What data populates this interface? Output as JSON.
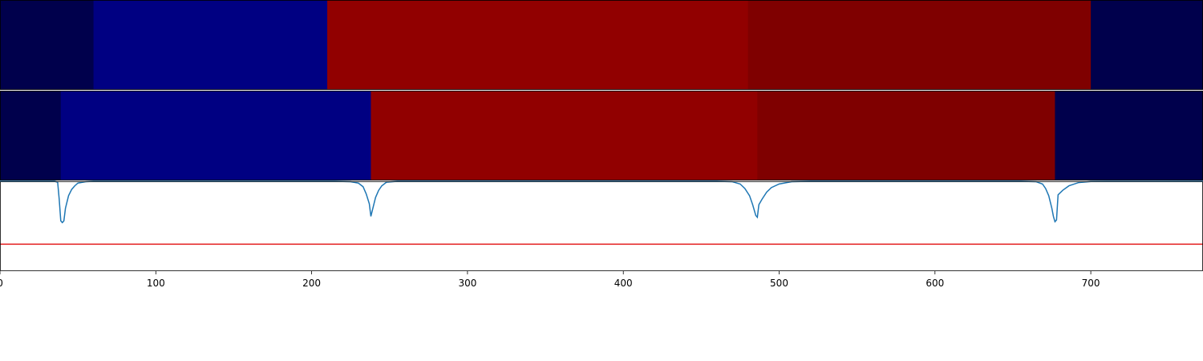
{
  "chart_data": {
    "type": "segmentation",
    "x_range": [
      0,
      772
    ],
    "xticks": [
      0,
      100,
      200,
      300,
      400,
      500,
      600,
      700
    ],
    "xtick_labels": [
      "0",
      "100",
      "200",
      "300",
      "400",
      "500",
      "600",
      "700"
    ],
    "color_scale": {
      "low": "#00004c",
      "mid_low": "#000082",
      "mid_high": "#910000",
      "high": "#7f0000"
    },
    "rows": [
      {
        "segments": [
          {
            "start": 0,
            "end": 60,
            "color": "#00004c"
          },
          {
            "start": 60,
            "end": 210,
            "color": "#000082"
          },
          {
            "start": 210,
            "end": 480,
            "color": "#910000"
          },
          {
            "start": 480,
            "end": 700,
            "color": "#7f0000"
          },
          {
            "start": 700,
            "end": 772,
            "color": "#00004c"
          }
        ]
      },
      {
        "segments": [
          {
            "start": 0,
            "end": 39,
            "color": "#00004c"
          },
          {
            "start": 39,
            "end": 238,
            "color": "#000082"
          },
          {
            "start": 238,
            "end": 486,
            "color": "#910000"
          },
          {
            "start": 486,
            "end": 677,
            "color": "#7f0000"
          },
          {
            "start": 677,
            "end": 772,
            "color": "#00004c"
          }
        ]
      }
    ],
    "line_panel": {
      "ylim": [
        0,
        1
      ],
      "threshold": 0.3,
      "threshold_color": "#e31a1c",
      "series_color": "#1f77b4",
      "series": [
        [
          0,
          1.0
        ],
        [
          35,
          1.0
        ],
        [
          37,
          0.99
        ],
        [
          38,
          0.8
        ],
        [
          39,
          0.56
        ],
        [
          40,
          0.54
        ],
        [
          41,
          0.56
        ],
        [
          42,
          0.7
        ],
        [
          44,
          0.84
        ],
        [
          46,
          0.91
        ],
        [
          48,
          0.95
        ],
        [
          50,
          0.98
        ],
        [
          55,
          0.995
        ],
        [
          60,
          1.0
        ],
        [
          215,
          1.0
        ],
        [
          225,
          0.995
        ],
        [
          230,
          0.98
        ],
        [
          233,
          0.94
        ],
        [
          235,
          0.86
        ],
        [
          237,
          0.75
        ],
        [
          238,
          0.61
        ],
        [
          239,
          0.68
        ],
        [
          241,
          0.82
        ],
        [
          243,
          0.9
        ],
        [
          245,
          0.95
        ],
        [
          248,
          0.99
        ],
        [
          255,
          1.0
        ],
        [
          460,
          1.0
        ],
        [
          470,
          0.995
        ],
        [
          475,
          0.97
        ],
        [
          478,
          0.92
        ],
        [
          481,
          0.84
        ],
        [
          483,
          0.74
        ],
        [
          485,
          0.62
        ],
        [
          486,
          0.6
        ],
        [
          487,
          0.74
        ],
        [
          489,
          0.8
        ],
        [
          492,
          0.88
        ],
        [
          495,
          0.93
        ],
        [
          500,
          0.97
        ],
        [
          508,
          0.995
        ],
        [
          520,
          1.0
        ],
        [
          655,
          1.0
        ],
        [
          665,
          0.995
        ],
        [
          669,
          0.97
        ],
        [
          671,
          0.92
        ],
        [
          673,
          0.84
        ],
        [
          675,
          0.7
        ],
        [
          676,
          0.61
        ],
        [
          677,
          0.55
        ],
        [
          678,
          0.57
        ],
        [
          679,
          0.85
        ],
        [
          682,
          0.9
        ],
        [
          686,
          0.95
        ],
        [
          692,
          0.985
        ],
        [
          700,
          0.998
        ],
        [
          710,
          0.999
        ],
        [
          740,
          0.999
        ],
        [
          772,
          1.0
        ]
      ]
    }
  }
}
